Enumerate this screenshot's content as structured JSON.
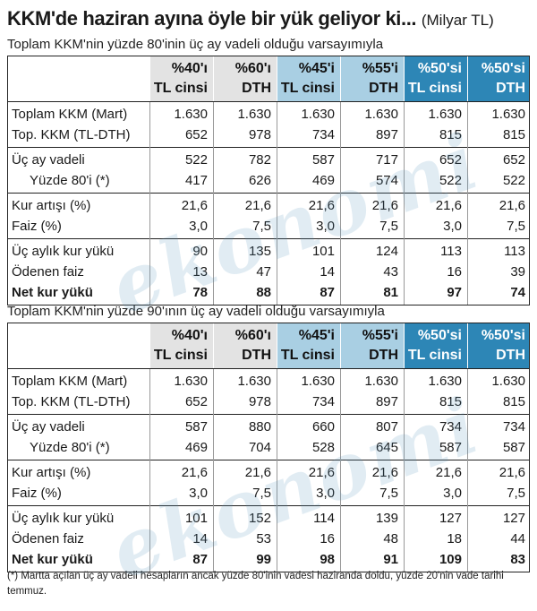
{
  "title": "KKM'de haziran ayına öyle bir yük geliyor ki...",
  "title_unit": "(Milyar TL)",
  "watermark": "ekonomi",
  "columns": [
    {
      "line1": "%40'ı",
      "line2": "TL cinsi",
      "shade": "gray"
    },
    {
      "line1": "%60'ı",
      "line2": "DTH",
      "shade": "gray"
    },
    {
      "line1": "%45'i",
      "line2": "TL cinsi",
      "shade": "light"
    },
    {
      "line1": "%55'i",
      "line2": "DTH",
      "shade": "light"
    },
    {
      "line1": "%50'si",
      "line2": "TL cinsi",
      "shade": "dark"
    },
    {
      "line1": "%50'si",
      "line2": "DTH",
      "shade": "dark"
    }
  ],
  "sections": [
    {
      "subtitle": "Toplam KKM'nin yüzde 80'inin üç ay vadeli olduğu varsayımıyla",
      "groups": [
        {
          "rows": [
            {
              "label": "Toplam KKM (Mart)",
              "indent": false,
              "bold": false,
              "values": [
                "1.630",
                "1.630",
                "1.630",
                "1.630",
                "1.630",
                "1.630"
              ]
            },
            {
              "label": "Top. KKM (TL-DTH)",
              "indent": false,
              "bold": false,
              "values": [
                "652",
                "978",
                "734",
                "897",
                "815",
                "815"
              ]
            }
          ]
        },
        {
          "rows": [
            {
              "label": "Üç ay vadeli",
              "indent": false,
              "bold": false,
              "values": [
                "522",
                "782",
                "587",
                "717",
                "652",
                "652"
              ]
            },
            {
              "label": "Yüzde 80'i (*)",
              "indent": true,
              "bold": false,
              "values": [
                "417",
                "626",
                "469",
                "574",
                "522",
                "522"
              ]
            }
          ]
        },
        {
          "rows": [
            {
              "label": "Kur artışı (%)",
              "indent": false,
              "bold": false,
              "values": [
                "21,6",
                "21,6",
                "21,6",
                "21,6",
                "21,6",
                "21,6"
              ]
            },
            {
              "label": "Faiz (%)",
              "indent": false,
              "bold": false,
              "values": [
                "3,0",
                "7,5",
                "3,0",
                "7,5",
                "3,0",
                "7,5"
              ]
            }
          ]
        },
        {
          "rows": [
            {
              "label": "Üç aylık kur yükü",
              "indent": false,
              "bold": false,
              "values": [
                "90",
                "135",
                "101",
                "124",
                "113",
                "113"
              ]
            },
            {
              "label": "Ödenen faiz",
              "indent": false,
              "bold": false,
              "values": [
                "13",
                "47",
                "14",
                "43",
                "16",
                "39"
              ]
            },
            {
              "label": "Net kur yükü",
              "indent": false,
              "bold": true,
              "values": [
                "78",
                "88",
                "87",
                "81",
                "97",
                "74"
              ]
            }
          ]
        }
      ]
    },
    {
      "subtitle": "Toplam KKM'nin yüzde 90'ının üç ay vadeli olduğu varsayımıyla",
      "groups": [
        {
          "rows": [
            {
              "label": "Toplam KKM (Mart)",
              "indent": false,
              "bold": false,
              "values": [
                "1.630",
                "1.630",
                "1.630",
                "1.630",
                "1.630",
                "1.630"
              ]
            },
            {
              "label": "Top. KKM (TL-DTH)",
              "indent": false,
              "bold": false,
              "values": [
                "652",
                "978",
                "734",
                "897",
                "815",
                "815"
              ]
            }
          ]
        },
        {
          "rows": [
            {
              "label": "Üç ay vadeli",
              "indent": false,
              "bold": false,
              "values": [
                "587",
                "880",
                "660",
                "807",
                "734",
                "734"
              ]
            },
            {
              "label": "Yüzde 80'i (*)",
              "indent": true,
              "bold": false,
              "values": [
                "469",
                "704",
                "528",
                "645",
                "587",
                "587"
              ]
            }
          ]
        },
        {
          "rows": [
            {
              "label": "Kur artışı (%)",
              "indent": false,
              "bold": false,
              "values": [
                "21,6",
                "21,6",
                "21,6",
                "21,6",
                "21,6",
                "21,6"
              ]
            },
            {
              "label": "Faiz (%)",
              "indent": false,
              "bold": false,
              "values": [
                "3,0",
                "7,5",
                "3,0",
                "7,5",
                "3,0",
                "7,5"
              ]
            }
          ]
        },
        {
          "rows": [
            {
              "label": "Üç aylık kur yükü",
              "indent": false,
              "bold": false,
              "values": [
                "101",
                "152",
                "114",
                "139",
                "127",
                "127"
              ]
            },
            {
              "label": "Ödenen faiz",
              "indent": false,
              "bold": false,
              "values": [
                "14",
                "53",
                "16",
                "48",
                "18",
                "44"
              ]
            },
            {
              "label": "Net kur yükü",
              "indent": false,
              "bold": true,
              "values": [
                "87",
                "99",
                "98",
                "91",
                "109",
                "83"
              ]
            }
          ]
        }
      ]
    }
  ],
  "footnote": "(*) Martta açılan üç ay vadeli hesapların ancak yüzde 80'inin vadesi haziranda doldu, yüzde 20'nin vade tarihi temmuz.",
  "colors": {
    "gray": "#e3e3e3",
    "light": "#a9cfe3",
    "dark": "#2d86b6"
  }
}
